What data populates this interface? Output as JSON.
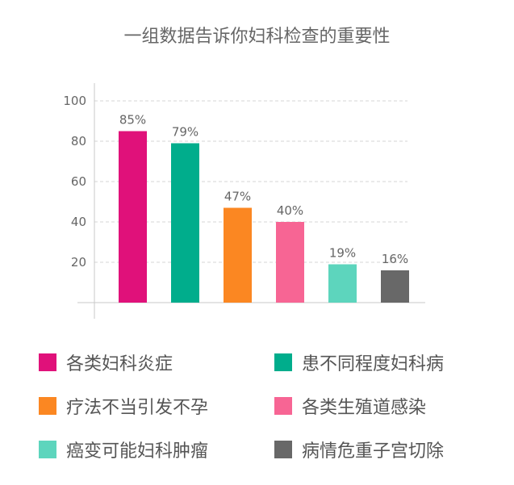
{
  "chart_data": {
    "type": "bar",
    "title": "一组数据告诉你妇科检查的重要性",
    "categories": [
      "各类妇科炎症",
      "患不同程度妇科病",
      "疗法不当引发不孕",
      "各类生殖道感染",
      "癌变可能妇科肿瘤",
      "病情危重子宫切除"
    ],
    "values": [
      85,
      79,
      47,
      40,
      19,
      16
    ],
    "value_labels": [
      "85%",
      "79%",
      "47%",
      "40%",
      "19%",
      "16%"
    ],
    "colors": [
      "#e0117a",
      "#00ad8c",
      "#fb8722",
      "#f76594",
      "#5dd5bd",
      "#686868"
    ],
    "ylim": [
      0,
      100
    ],
    "yticks": [
      "20",
      "40",
      "60",
      "80",
      "100"
    ],
    "grid": true,
    "legend_placement": "bottom"
  }
}
